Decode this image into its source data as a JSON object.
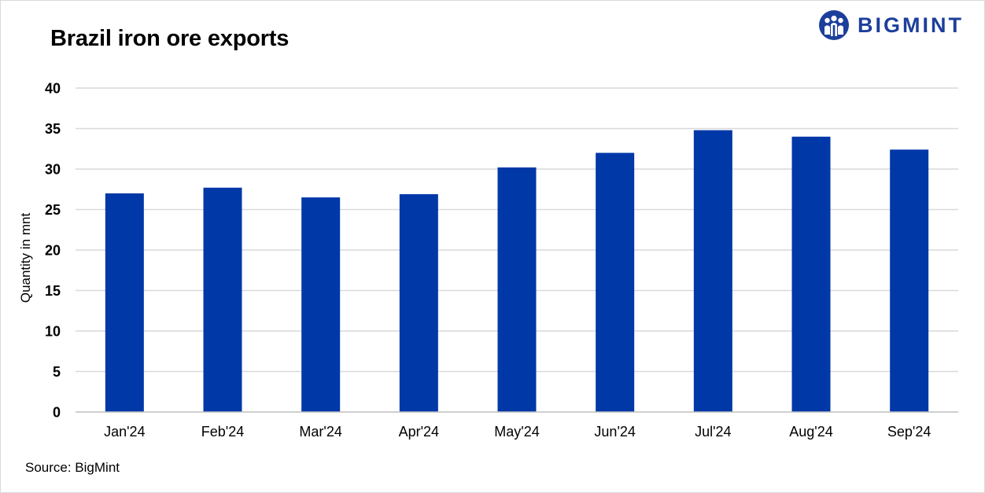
{
  "title": "Brazil iron ore exports",
  "source": "Source: BigMint",
  "logo": {
    "text": "BIGMINT",
    "icon": "people-group-icon",
    "color": "#1c3f9c"
  },
  "chart_data": {
    "type": "bar",
    "title": "Brazil iron ore exports",
    "xlabel": "",
    "ylabel": "Quantity in mnt",
    "categories": [
      "Jan'24",
      "Feb'24",
      "Mar'24",
      "Apr'24",
      "May'24",
      "Jun'24",
      "Jul'24",
      "Aug'24",
      "Sep'24"
    ],
    "values": [
      27.0,
      27.7,
      26.5,
      26.9,
      30.2,
      32.0,
      34.8,
      34.0,
      32.4
    ],
    "ylim": [
      0,
      40
    ],
    "yticks": [
      0,
      5,
      10,
      15,
      20,
      25,
      30,
      35,
      40
    ],
    "grid": true,
    "legend": "none",
    "bar_color": "#0038a8",
    "grid_color": "#d9d9d9"
  }
}
